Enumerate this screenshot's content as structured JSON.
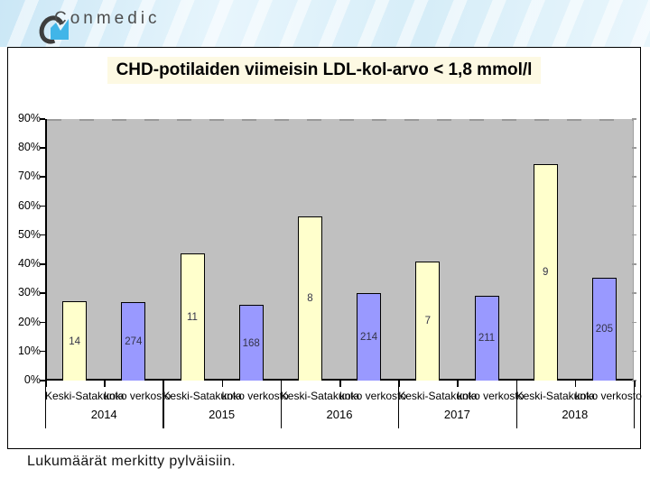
{
  "header": {
    "brand": "Conmedic"
  },
  "title": "CHD-potilaiden viimeisin LDL-kol-arvo < 1,8 mmol/l",
  "note": "Lukumäärät merkitty pylväisiin.",
  "colors": {
    "keski_bar": "#ffffcc",
    "verkosto_bar": "#9999ff",
    "plot_bg": "#c0c0c0",
    "title_bg": "#fdf9e3",
    "bar_label": "#333348",
    "header_blue": "#cbe7f6",
    "logo_blue": "#41b5e8"
  },
  "chart_data": {
    "type": "bar",
    "title": "CHD-potilaiden viimeisin LDL-kol-arvo < 1,8 mmol/l",
    "ylabel": "",
    "xlabel": "",
    "ylim": [
      0,
      90
    ],
    "y_ticks": [
      "90%",
      "80%",
      "70%",
      "60%",
      "50%",
      "40%",
      "30%",
      "20%",
      "10%",
      "0%"
    ],
    "grid": false,
    "legend": "none",
    "years": [
      "2014",
      "2015",
      "2016",
      "2017",
      "2018"
    ],
    "series": [
      {
        "name": "Keski-Satakunta",
        "values_pct": [
          27.2,
          43.7,
          56.6,
          41.0,
          74.6
        ],
        "counts": [
          14,
          11,
          8,
          7,
          9
        ]
      },
      {
        "name": "koko verkosto",
        "values_pct": [
          27.0,
          26.0,
          30.2,
          29.3,
          35.5
        ],
        "counts": [
          274,
          168,
          214,
          211,
          205
        ]
      }
    ],
    "bars": [
      {
        "year": "2014",
        "group": "Keski-Satakunta",
        "pct": 27.2,
        "count": "14",
        "color": "#ffffcc"
      },
      {
        "year": "2014",
        "group": "koko verkosto",
        "pct": 27.0,
        "count": "274",
        "color": "#9999ff"
      },
      {
        "year": "2015",
        "group": "Keski-Satakunta",
        "pct": 43.7,
        "count": "11",
        "color": "#ffffcc"
      },
      {
        "year": "2015",
        "group": "koko verkosto",
        "pct": 26.0,
        "count": "168",
        "color": "#9999ff"
      },
      {
        "year": "2016",
        "group": "Keski-Satakunta",
        "pct": 56.6,
        "count": "8",
        "color": "#ffffcc"
      },
      {
        "year": "2016",
        "group": "koko verkosto",
        "pct": 30.2,
        "count": "214",
        "color": "#9999ff"
      },
      {
        "year": "2017",
        "group": "Keski-Satakunta",
        "pct": 41.0,
        "count": "7",
        "color": "#ffffcc"
      },
      {
        "year": "2017",
        "group": "koko verkosto",
        "pct": 29.3,
        "count": "211",
        "color": "#9999ff"
      },
      {
        "year": "2018",
        "group": "Keski-Satakunta",
        "pct": 74.6,
        "count": "9",
        "color": "#ffffcc"
      },
      {
        "year": "2018",
        "group": "koko verkosto",
        "pct": 35.5,
        "count": "205",
        "color": "#9999ff"
      }
    ],
    "note": "Lukumäärät merkitty pylväisiin."
  }
}
